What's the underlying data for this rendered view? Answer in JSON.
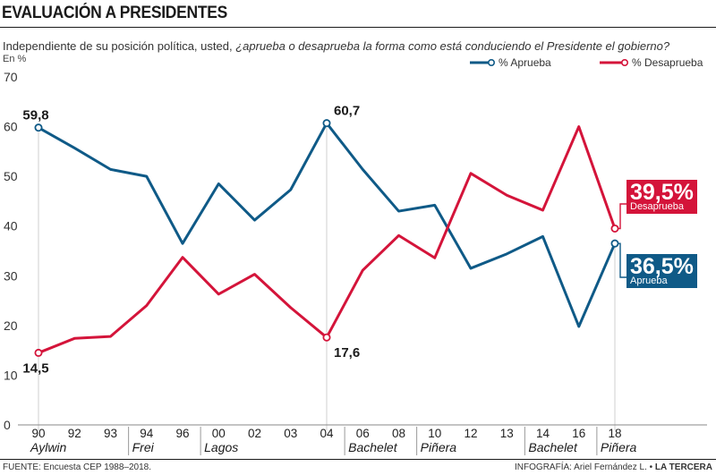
{
  "header": {
    "title": "EVALUACIÓN A PRESIDENTES",
    "subtitle_plain": "Independiente de su posición política, usted, ",
    "subtitle_italic": "¿aprueba o desaprueba la forma como está conduciendo el Presidente el gobierno?",
    "units": "En %"
  },
  "legend": {
    "aprueba": "% Aprueba",
    "desaprueba": "% Desaprueba"
  },
  "colors": {
    "aprueba": "#0f5a87",
    "desaprueba": "#d4143a",
    "grid": "#cfcfcf",
    "text": "#1a1a1a"
  },
  "badges": {
    "desaprueba_pct": "39,5%",
    "desaprueba_label": "Desaprueba",
    "aprueba_pct": "36,5%",
    "aprueba_label": "Aprueba"
  },
  "footer": {
    "source": "FUENTE: Encuesta CEP 1988–2018.",
    "credit_label": "INFOGRAFÍA: Ariel Fernández L. •",
    "credit_brand": "LA TERCERA"
  },
  "chart_data": {
    "type": "line",
    "x": [
      "90",
      "92",
      "93",
      "94",
      "96",
      "00",
      "02",
      "03",
      "04",
      "06",
      "08",
      "10",
      "12",
      "13",
      "14",
      "16",
      "18"
    ],
    "ylim": [
      0,
      70
    ],
    "yticks": [
      0,
      10,
      20,
      30,
      40,
      50,
      60,
      70
    ],
    "series": [
      {
        "name": "% Aprueba",
        "values": [
          59.8,
          55.7,
          51.4,
          50.0,
          36.5,
          48.5,
          41.2,
          47.3,
          60.7,
          51.4,
          43.0,
          44.2,
          31.5,
          34.4,
          37.9,
          19.8,
          36.5
        ]
      },
      {
        "name": "% Desaprueba",
        "values": [
          14.5,
          17.4,
          17.8,
          24.0,
          33.7,
          26.3,
          30.3,
          23.6,
          17.6,
          31.1,
          38.1,
          33.6,
          50.6,
          46.2,
          43.2,
          60.0,
          39.5
        ]
      }
    ],
    "point_labels": [
      {
        "series": 0,
        "index": 0,
        "text": "59,8"
      },
      {
        "series": 1,
        "index": 0,
        "text": "14,5"
      },
      {
        "series": 0,
        "index": 8,
        "text": "60,7"
      },
      {
        "series": 1,
        "index": 8,
        "text": "17,6"
      }
    ],
    "presidents": [
      {
        "name": "Aylwin",
        "start_index": 0
      },
      {
        "name": "Frei",
        "start_index": 3
      },
      {
        "name": "Lagos",
        "start_index": 5
      },
      {
        "name": "Bachelet",
        "start_index": 9
      },
      {
        "name": "Piñera",
        "start_index": 11
      },
      {
        "name": "Bachelet",
        "start_index": 14
      },
      {
        "name": "Piñera",
        "start_index": 16
      }
    ],
    "grid": "vertical-at-markers",
    "legend_position": "top-right"
  }
}
